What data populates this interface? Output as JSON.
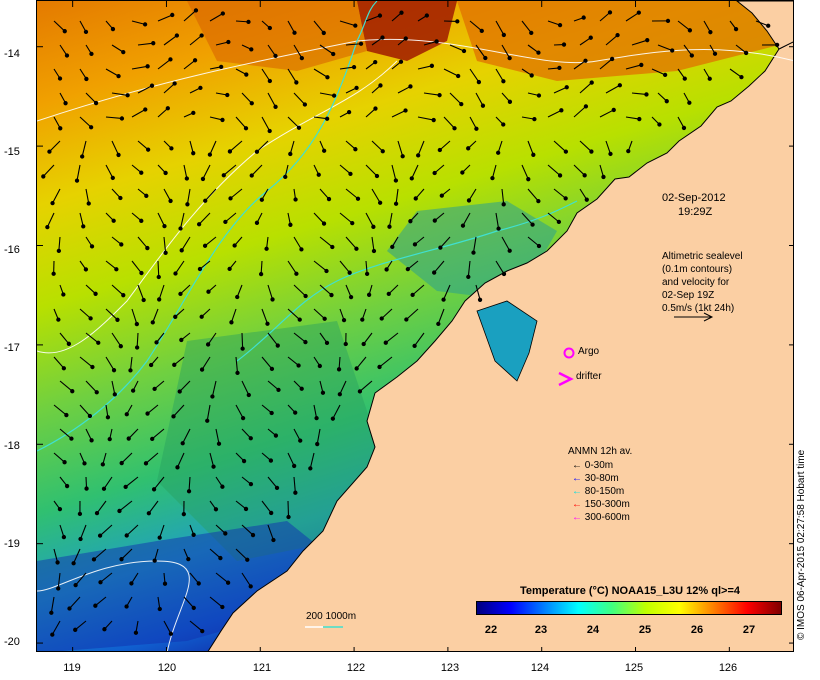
{
  "y_axis": {
    "ticks": [
      {
        "value": -14,
        "label": "-14"
      },
      {
        "value": -15,
        "label": "-15"
      },
      {
        "value": -16,
        "label": "-16"
      },
      {
        "value": -17,
        "label": "-17"
      },
      {
        "value": -18,
        "label": "-18"
      },
      {
        "value": -19,
        "label": "-19"
      },
      {
        "value": -20,
        "label": "-20"
      }
    ]
  },
  "x_axis": {
    "ticks": [
      {
        "value": 119,
        "label": "119"
      },
      {
        "value": 120,
        "label": "120"
      },
      {
        "value": 121,
        "label": "121"
      },
      {
        "value": 122,
        "label": "122"
      },
      {
        "value": 123,
        "label": "123"
      },
      {
        "value": 124,
        "label": "124"
      },
      {
        "value": 125,
        "label": "125"
      },
      {
        "value": 126,
        "label": "126"
      }
    ]
  },
  "annotations": {
    "date": "02-Sep-2012",
    "time": "19:29Z",
    "altimetry": [
      "Altimetric sealevel",
      "(0.1m contours)",
      "and velocity for",
      "02-Sep 19Z",
      "0.5m/s (1kt 24h)"
    ],
    "argo": "Argo",
    "drifter": "drifter",
    "depth_scale": "200  1000m"
  },
  "anmn_legend": {
    "title": "ANMN 12h av.",
    "items": [
      {
        "label": "0-30m",
        "color": "#000000"
      },
      {
        "label": "30-80m",
        "color": "#0000ff"
      },
      {
        "label": "80-150m",
        "color": "#00e0e0"
      },
      {
        "label": "150-300m",
        "color": "#ff0000"
      },
      {
        "label": "300-600m",
        "color": "#ff00ff"
      }
    ]
  },
  "colorbar": {
    "title": "Temperature (°C) NOAA15_L3U 12% ql>=4",
    "labels": [
      "22",
      "23",
      "24",
      "25",
      "26",
      "27"
    ],
    "colors": [
      "#00007f",
      "#0000ff",
      "#0080ff",
      "#00ffff",
      "#40ff80",
      "#c0ff00",
      "#ffff00",
      "#ff8000",
      "#ff0000",
      "#7f0000"
    ]
  },
  "credit": "© IMOS 06-Apr-2015 02:27:58 Hobart time",
  "colors": {
    "land": "#fbcfa3",
    "contour": "#ffffff",
    "isobath": "#40e0d0"
  }
}
